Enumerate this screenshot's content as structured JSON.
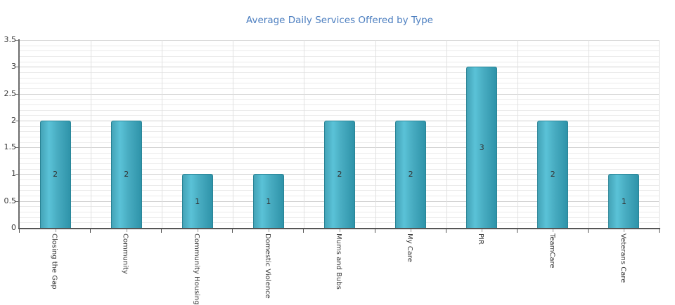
{
  "chart_data": {
    "type": "bar",
    "title": "Average Daily Services Offered by Type",
    "categories": [
      "Closing the Gap",
      "Community",
      "Community Housing",
      "Domestic Violence",
      "Mums and Bubs",
      "My Care",
      "PIR",
      "TeamCare",
      "Veterans Care"
    ],
    "values": [
      2,
      2,
      1,
      1,
      2,
      2,
      3,
      2,
      1
    ],
    "bar_labels": [
      "2",
      "2",
      "1",
      "1",
      "2",
      "2",
      "3",
      "2",
      "1"
    ],
    "xlabel": "",
    "ylabel": "",
    "ylim": [
      0,
      3.5
    ],
    "y_major_step": 0.5,
    "y_minor_step": 0.1,
    "y_tick_labels": [
      "0",
      "0.5",
      "1",
      "1.5",
      "2",
      "2.5",
      "3",
      "3.5"
    ],
    "grid": "on",
    "legend": "none",
    "colors": {
      "title": "#4d7fc0",
      "bar_left": "#44a3b7",
      "bar_highlight": "#5ac2d7",
      "bar_mid": "#49adc2",
      "bar_right": "#2e93a9",
      "bar_border": "#2a8496",
      "value_label": "#333333",
      "axis_x": "#555555",
      "axis_y": "#6b6b6b",
      "grid_major": "#d0d0d0",
      "grid_minor": "#eaeaea",
      "grid_vertical": "#e0e0e0",
      "tick_label": "#3a3a3a"
    }
  }
}
